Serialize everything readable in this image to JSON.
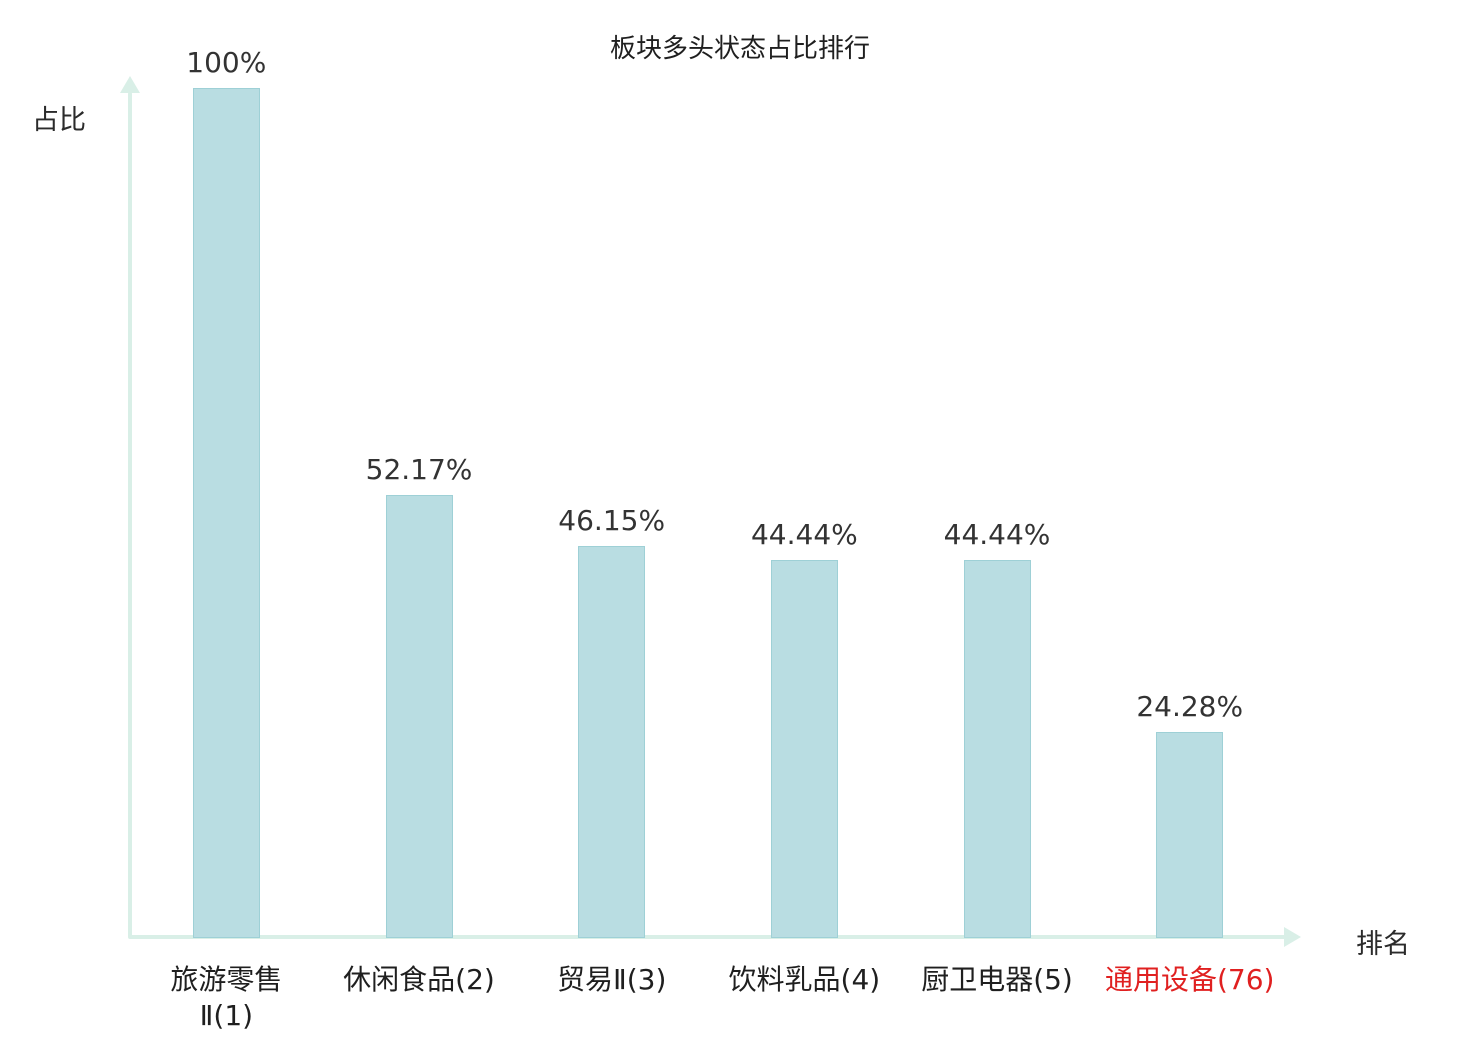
{
  "title": "板块多头状态占比排行",
  "colors": {
    "bar_fill": "#b9dde2",
    "bar_border": "#9ed0d6",
    "axis": "#d9efe7",
    "text": "#2b2b2b",
    "highlight": "#e02020"
  },
  "chart_data": {
    "type": "bar",
    "title": "板块多头状态占比排行",
    "xlabel": "排名",
    "ylabel": "占比",
    "ylim": [
      0,
      100
    ],
    "grid": false,
    "legend": "none",
    "categories": [
      "旅游零售Ⅱ(1)",
      "休闲食品(2)",
      "贸易Ⅱ(3)",
      "饮料乳品(4)",
      "厨卫电器(5)",
      "通用设备(76)"
    ],
    "category_display": [
      "旅游零售\nⅡ(1)",
      "休闲食品(2)",
      "贸易Ⅱ(3)",
      "饮料乳品(4)",
      "厨卫电器(5)",
      "通用设备(76)"
    ],
    "values": [
      100,
      52.17,
      46.15,
      44.44,
      44.44,
      24.28
    ],
    "value_labels": [
      "100%",
      "52.17%",
      "46.15%",
      "44.44%",
      "44.44%",
      "24.28%"
    ],
    "highlight_index": 5
  }
}
